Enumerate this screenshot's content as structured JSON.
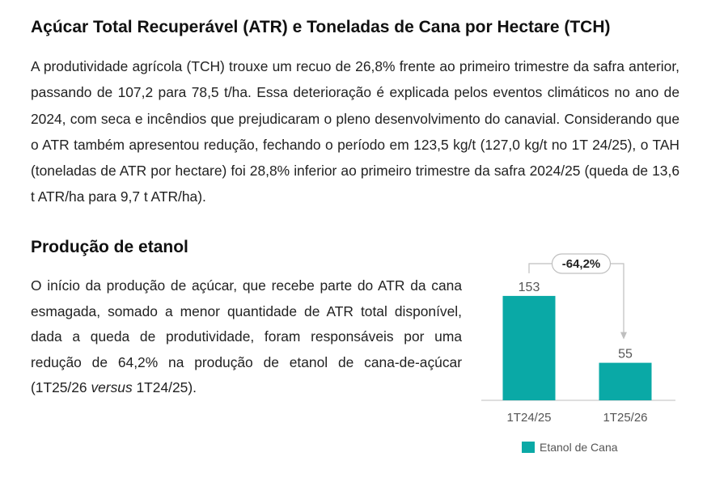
{
  "section1": {
    "title": "Açúcar Total Recuperável (ATR) e Toneladas de Cana por Hectare (TCH)",
    "paragraph": "A produtividade agrícola (TCH) trouxe um recuo de 26,8% frente ao primeiro trimestre da safra anterior, passando de 107,2 para 78,5 t/ha. Essa deterioração é explicada pelos eventos climáticos no ano de 2024, com seca e incêndios que prejudicaram o pleno desenvolvimento do canavial. Considerando que o ATR também apresentou redução, fechando o período em 123,5 kg/t (127,0 kg/t no 1T 24/25), o TAH (toneladas de ATR por hectare) foi 28,8% inferior ao primeiro trimestre da safra 2024/25 (queda de 13,6 t ATR/ha para 9,7 t ATR/ha)."
  },
  "section2": {
    "title": "Produção de etanol",
    "paragraph_before": "O início da produção de açúcar, que recebe parte do ATR da cana esmagada, somado a menor quantidade de ATR total disponível, dada a queda de produtividade, foram responsáveis por uma redução de 64,2% na produção de etanol de cana-de-açúcar (1T25/26 ",
    "paragraph_italic": "versus",
    "paragraph_after": " 1T24/25)."
  },
  "chart_data": {
    "type": "bar",
    "categories": [
      "1T24/25",
      "1T25/26"
    ],
    "series": [
      {
        "name": "Etanol de Cana",
        "values": [
          153,
          55
        ]
      }
    ],
    "annotation": "-64,2%",
    "ylim": [
      0,
      160
    ],
    "color": "#0aa9a6",
    "legend_position": "bottom",
    "grid": false
  }
}
